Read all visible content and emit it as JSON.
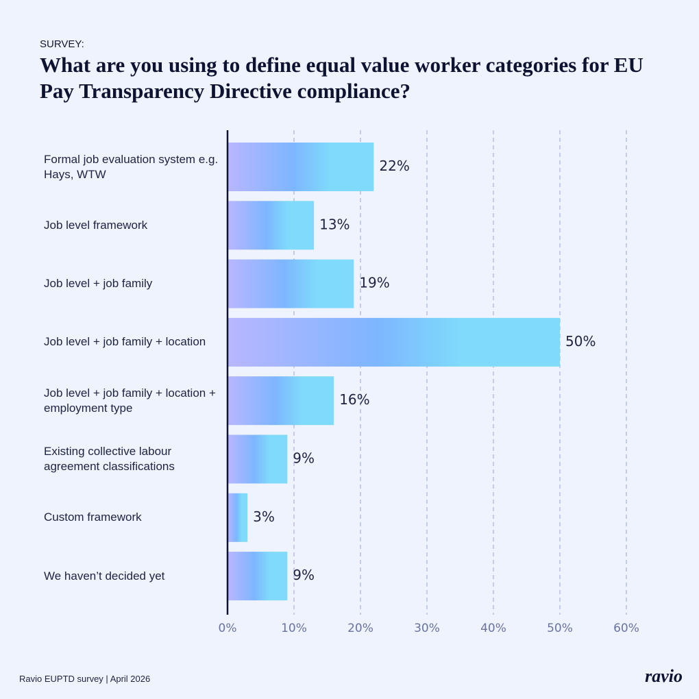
{
  "eyebrow": "SURVEY:",
  "footer": {
    "source": "Ravio EUPTD survey | April 2026",
    "logo": "ravio"
  },
  "chart_data": {
    "type": "bar",
    "orientation": "horizontal",
    "title": "What are you using to define equal value worker categories for EU Pay Transparency Directive compliance?",
    "categories": [
      "Formal job evaluation system e.g. Hays, WTW",
      "Job level framework",
      "Job level + job family",
      "Job level + job family + location",
      "Job level + job family + location + employment type",
      "Existing collective labour agreement classifications",
      "Custom framework",
      "We haven’t decided yet"
    ],
    "values": [
      22,
      13,
      19,
      50,
      16,
      9,
      3,
      9
    ],
    "value_labels": [
      "22%",
      "13%",
      "19%",
      "50%",
      "16%",
      "9%",
      "3%",
      "9%"
    ],
    "colors": [
      "#b9b6ff",
      "#7db6ff",
      "#7fdafb"
    ],
    "xlim": [
      0,
      60
    ],
    "xticks": [
      {
        "value": 0,
        "label": "0%"
      },
      {
        "value": 10,
        "label": "10%"
      },
      {
        "value": 20,
        "label": "20%"
      },
      {
        "value": 30,
        "label": "30%"
      },
      {
        "value": 40,
        "label": "40%"
      },
      {
        "value": 50,
        "label": "50%"
      },
      {
        "value": 60,
        "label": "60%"
      }
    ],
    "grid": true
  }
}
